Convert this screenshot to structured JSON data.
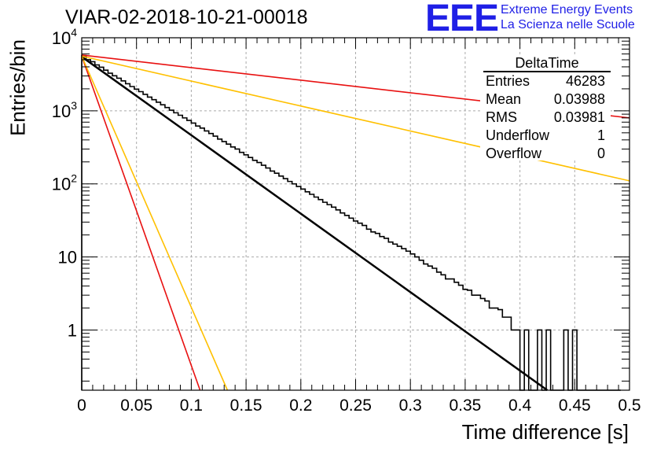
{
  "title": "VIAR-02-2018-10-21-00018",
  "logo": {
    "mark": "EEE",
    "line1": "Extreme Energy Events",
    "line2": "La Scienza nelle Scuole"
  },
  "stats_box": {
    "name": "DeltaTime",
    "rows": [
      {
        "label": "Entries",
        "value": "46283"
      },
      {
        "label": "Mean",
        "value": "0.03988"
      },
      {
        "label": "RMS",
        "value": "0.03981"
      },
      {
        "label": "Underflow",
        "value": "1"
      },
      {
        "label": "Overflow",
        "value": "0"
      }
    ]
  },
  "chart_data": {
    "type": "line",
    "xlabel": "Time difference [s]",
    "ylabel": "Entries/bin",
    "xlim": [
      0,
      0.5
    ],
    "ylim": [
      0.15,
      10000
    ],
    "yscale": "log",
    "grid": true,
    "x_ticks": [
      "0",
      "0.05",
      "0.1",
      "0.15",
      "0.2",
      "0.25",
      "0.3",
      "0.35",
      "0.4",
      "0.45",
      "0.5"
    ],
    "y_ticks": [
      {
        "value": 1,
        "label": "1"
      },
      {
        "value": 10,
        "label": "10"
      },
      {
        "value": 100,
        "label": "10^2"
      },
      {
        "value": 1000,
        "label": "10^3"
      },
      {
        "value": 10000,
        "label": "10^4"
      }
    ],
    "histogram": {
      "bin_width": 0.004,
      "y_min": 0.15,
      "values": [
        5700,
        5000,
        4700,
        4250,
        3950,
        3600,
        3270,
        3020,
        2790,
        2570,
        2350,
        2150,
        1980,
        1830,
        1680,
        1540,
        1420,
        1310,
        1210,
        1110,
        1020,
        940,
        870,
        800,
        740,
        680,
        620,
        580,
        530,
        490,
        450,
        410,
        380,
        350,
        320,
        300,
        270,
        250,
        230,
        210,
        196,
        180,
        165,
        150,
        140,
        128,
        118,
        108,
        100,
        92,
        85,
        78,
        72,
        66,
        61,
        56,
        52,
        48,
        44,
        40,
        37,
        34,
        31,
        29,
        27,
        24,
        22,
        21,
        19,
        18,
        16,
        15,
        14,
        13,
        12,
        11,
        10,
        9,
        8,
        7.5,
        7,
        6.2,
        5.7,
        5,
        5,
        4.5,
        4.1,
        3.6,
        3.5,
        3,
        3,
        2.7,
        2.5,
        2,
        2,
        1.9,
        1.5,
        1.5,
        1,
        1,
        0.15,
        1,
        0.15,
        0.15,
        1,
        0.15,
        1,
        0.15,
        0.15,
        0.15,
        1,
        0.15,
        1,
        0.15,
        0.15,
        0.15,
        0.15,
        0.15,
        0.15,
        0.15,
        0.15,
        0.15,
        0.15
      ]
    },
    "fit_lines": [
      {
        "color": "#000000",
        "width": 2.5,
        "points": [
          [
            0,
            5500
          ],
          [
            0.425,
            0.15
          ]
        ]
      },
      {
        "color": "#e81010",
        "width": 1.6,
        "points": [
          [
            0,
            5800
          ],
          [
            0.5,
            800
          ]
        ]
      },
      {
        "color": "#ffc000",
        "width": 1.6,
        "points": [
          [
            0,
            5600
          ],
          [
            0.5,
            110
          ]
        ]
      },
      {
        "color": "#e81010",
        "width": 1.6,
        "points": [
          [
            0,
            5600
          ],
          [
            0.108,
            0.15
          ]
        ]
      },
      {
        "color": "#ffc000",
        "width": 1.6,
        "points": [
          [
            0,
            5600
          ],
          [
            0.133,
            0.15
          ]
        ]
      }
    ]
  }
}
